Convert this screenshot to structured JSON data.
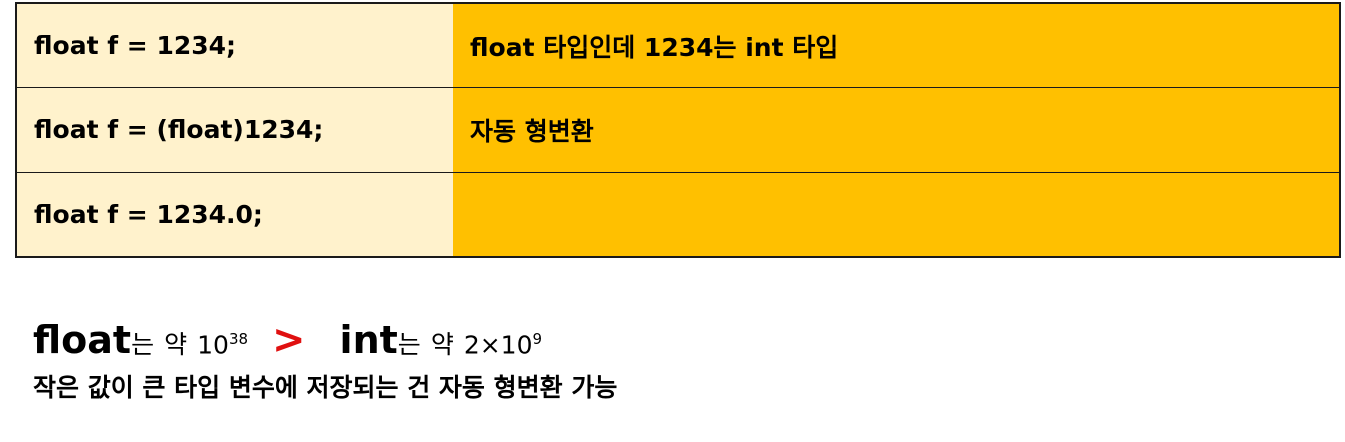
{
  "rows": [
    {
      "code": "float f = 1234;",
      "note": "float 타입인데 1234는 int 타입"
    },
    {
      "code": "float f = (float)1234;",
      "note": "자동 형변환"
    },
    {
      "code": "float f = 1234.0;",
      "note": ""
    }
  ],
  "comparison": {
    "left_keyword": "float",
    "left_suffix": "는",
    "left_approx": "약",
    "left_base": "10",
    "left_exponent": "38",
    "operator": ">",
    "right_keyword": "int",
    "right_suffix": "는",
    "right_approx": "약",
    "right_base": "2×10",
    "right_exponent": "9"
  },
  "conclusion": "작은 값이 큰 타입 변수에 저장되는 건 자동 형변환 가능",
  "colors": {
    "left_cell": "#fff2cc",
    "right_cell": "#ffc000",
    "operator": "#e01010"
  }
}
